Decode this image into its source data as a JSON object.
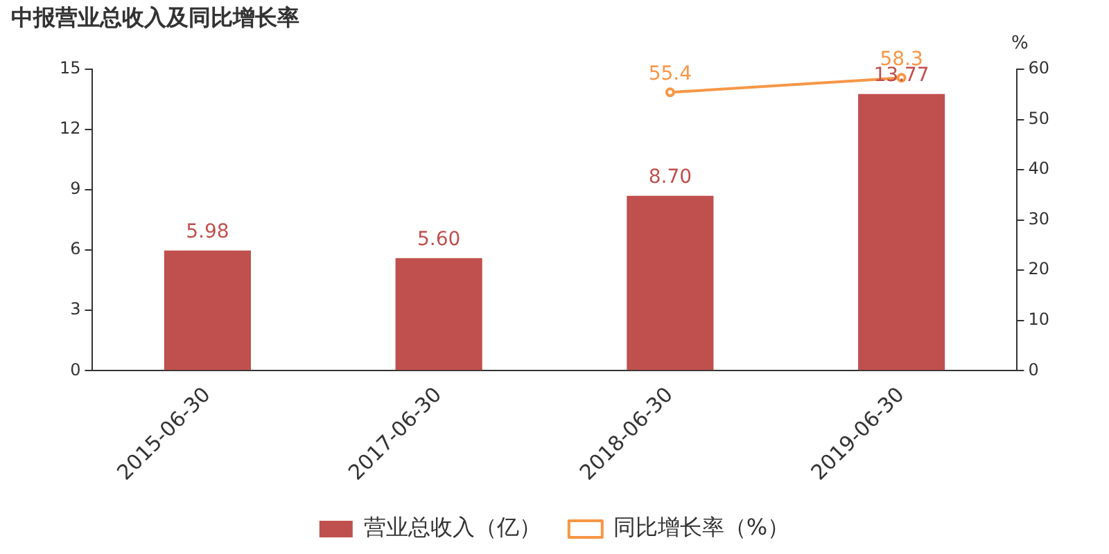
{
  "chart_data": {
    "type": "bar",
    "title": "中报营业总收入及同比增长率",
    "y2label": "%",
    "categories": [
      "2015-06-30",
      "2017-06-30",
      "2018-06-30",
      "2019-06-30"
    ],
    "series": [
      {
        "name": "营业总收入（亿）",
        "color": "#c0504d",
        "values": [
          5.98,
          5.6,
          8.7,
          13.77
        ],
        "value_labels": [
          "5.98",
          "5.60",
          "8.70",
          "13.77"
        ]
      },
      {
        "name": "同比增长率（%）",
        "type": "line",
        "axis": "y2",
        "color": "#f79646",
        "marker": "circle",
        "values": [
          null,
          null,
          55.4,
          58.3
        ],
        "value_labels": [
          null,
          null,
          "55.4",
          "58.3"
        ]
      }
    ],
    "ylim": [
      0,
      15
    ],
    "yticks": [
      0,
      3,
      6,
      9,
      12,
      15
    ],
    "y2lim": [
      0,
      60
    ],
    "y2ticks": [
      0,
      10,
      20,
      30,
      40,
      50,
      60
    ],
    "grid": false,
    "legend": "bottom"
  }
}
